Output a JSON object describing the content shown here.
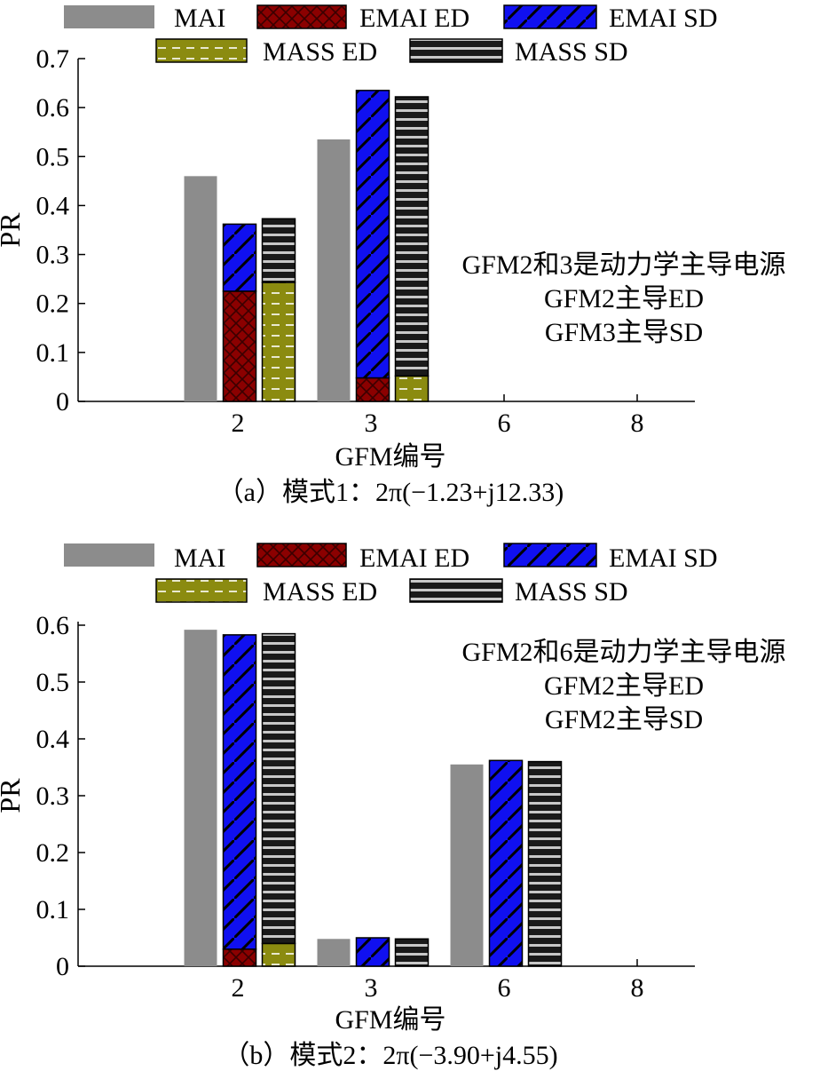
{
  "chart_data": [
    {
      "type": "bar",
      "stacked_pairs": true,
      "caption": "（a）模式1：2π(−1.23+j12.33)",
      "xlabel": "GFM编号",
      "ylabel": "PR",
      "categories": [
        "2",
        "3",
        "6",
        "8"
      ],
      "ylim": [
        0,
        0.7
      ],
      "yticks": [
        "0",
        "0.1",
        "0.2",
        "0.3",
        "0.4",
        "0.5",
        "0.6",
        "0.7"
      ],
      "legend": [
        "MAI",
        "EMAI ED",
        "EMAI SD",
        "MASS ED",
        "MASS SD"
      ],
      "legend_position": "top",
      "series": [
        {
          "name": "MAI",
          "values": [
            0.46,
            0.535,
            0,
            0
          ]
        },
        {
          "name": "EMAI ED",
          "values": [
            0.225,
            0.048,
            0,
            0
          ]
        },
        {
          "name": "EMAI SD",
          "values": [
            0.137,
            0.587,
            0,
            0
          ]
        },
        {
          "name": "MASS ED",
          "values": [
            0.243,
            0.052,
            0,
            0
          ]
        },
        {
          "name": "MASS SD",
          "values": [
            0.13,
            0.57,
            0,
            0
          ]
        }
      ],
      "annotations": [
        "GFM2和3是动力学主导电源",
        "GFM2主导ED",
        "GFM3主导SD"
      ]
    },
    {
      "type": "bar",
      "stacked_pairs": true,
      "caption": "（b）模式2：2π(−3.90+j4.55)",
      "xlabel": "GFM编号",
      "ylabel": "PR",
      "categories": [
        "2",
        "3",
        "6",
        "8"
      ],
      "ylim": [
        0,
        0.6
      ],
      "yticks": [
        "0",
        "0.1",
        "0.2",
        "0.3",
        "0.4",
        "0.5",
        "0.6"
      ],
      "legend": [
        "MAI",
        "EMAI ED",
        "EMAI SD",
        "MASS ED",
        "MASS SD"
      ],
      "legend_position": "top",
      "series": [
        {
          "name": "MAI",
          "values": [
            0.592,
            0.048,
            0.355,
            0
          ]
        },
        {
          "name": "EMAI ED",
          "values": [
            0.03,
            0,
            0,
            0
          ]
        },
        {
          "name": "EMAI SD",
          "values": [
            0.553,
            0.05,
            0.362,
            0
          ]
        },
        {
          "name": "MASS ED",
          "values": [
            0.04,
            0,
            0,
            0
          ]
        },
        {
          "name": "MASS SD",
          "values": [
            0.545,
            0.048,
            0.36,
            0
          ]
        }
      ],
      "annotations": [
        "GFM2和6是动力学主导电源",
        "GFM2主导ED",
        "GFM2主导SD"
      ]
    }
  ],
  "colors": {
    "MAI": "#8c8c8c",
    "EMAI ED": "#8b0000",
    "EMAI SD": "#1010f0",
    "MASS ED": "#8b8b10",
    "MASS SD": "#1a1a1a"
  }
}
